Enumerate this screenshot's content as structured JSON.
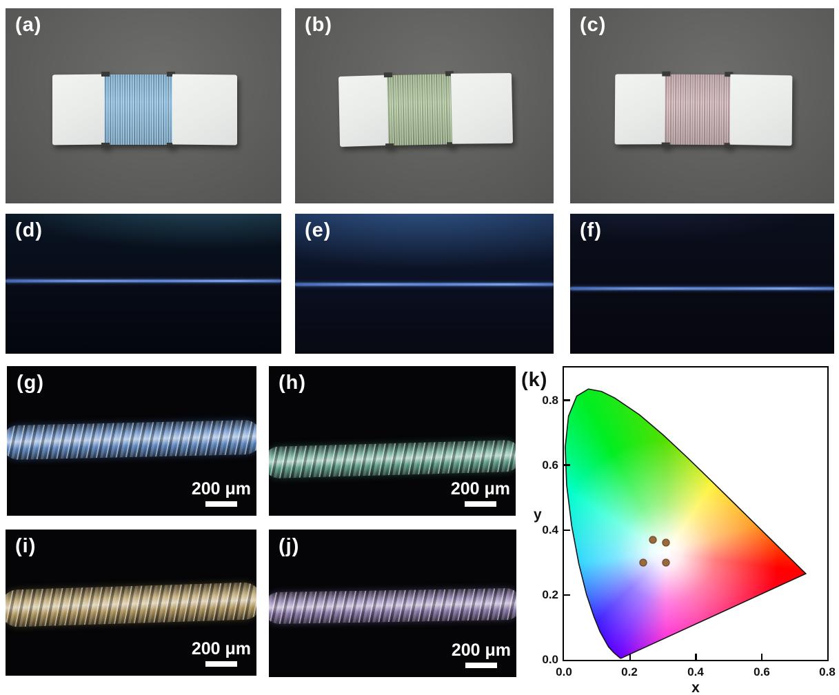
{
  "panels": {
    "a": {
      "label": "(a)"
    },
    "b": {
      "label": "(b)"
    },
    "c": {
      "label": "(c)"
    },
    "d": {
      "label": "(d)"
    },
    "e": {
      "label": "(e)"
    },
    "f": {
      "label": "(f)"
    },
    "g": {
      "label": "(g)",
      "scale_bar": "200 μm"
    },
    "h": {
      "label": "(h)",
      "scale_bar": "200 μm"
    },
    "i": {
      "label": "(i)",
      "scale_bar": "200 μm"
    },
    "j": {
      "label": "(j)",
      "scale_bar": "200 μm"
    },
    "k": {
      "label": "(k)"
    }
  },
  "colors": {
    "fiber_blue": "#85b9dd",
    "fiber_green": "#a9c095",
    "fiber_pink": "#cbadb0",
    "micro_blue": "#5f8cc8",
    "micro_teal": "#5fa28d",
    "micro_gold": "#b59a5e",
    "micro_purple": "#8d7aae",
    "uv_thread": "#5b84d6"
  },
  "chart_data": {
    "type": "scatter",
    "xlabel": "x",
    "ylabel": "y",
    "xlim": [
      0.0,
      0.8
    ],
    "ylim": [
      0.0,
      0.9
    ],
    "grid": false,
    "legend": "none",
    "background": "CIE-1931-chromaticity-gamut",
    "xtick_labels": [
      "0.0",
      "0.2",
      "0.4",
      "0.6",
      "0.8"
    ],
    "ytick_labels": [
      "0.0",
      "0.2",
      "0.4",
      "0.6",
      "0.8"
    ],
    "points": [
      {
        "x": 0.27,
        "y": 0.37
      },
      {
        "x": 0.31,
        "y": 0.36
      },
      {
        "x": 0.24,
        "y": 0.3
      },
      {
        "x": 0.31,
        "y": 0.3
      }
    ],
    "point_color": "#9a6a3d"
  }
}
